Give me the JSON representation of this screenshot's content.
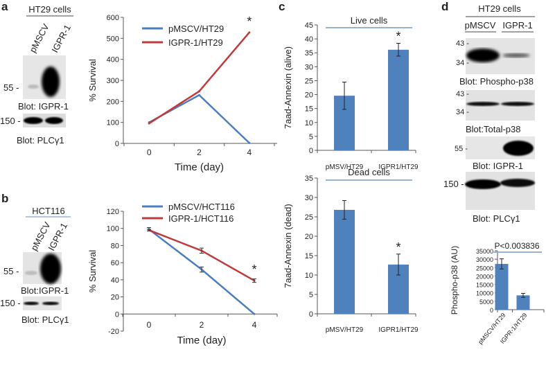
{
  "panels": {
    "a": {
      "letter": "a",
      "cell_line": "HT29 cells",
      "lanes": [
        "pMSCV",
        "IGPR-1"
      ],
      "blots": [
        {
          "marker": "55 -",
          "label": "Blot: IGPR-1"
        },
        {
          "marker": "150 -",
          "label": "Blot: PLCγ1"
        }
      ]
    },
    "b": {
      "letter": "b",
      "cell_line": "HCT116",
      "lanes": [
        "pMSCV",
        "IGPR-1"
      ],
      "blots": [
        {
          "marker": "55 -",
          "label": "Blot:IGPR-1"
        },
        {
          "marker": "150 -",
          "label": "Blot: PLCγ1"
        }
      ]
    },
    "c": {
      "letter": "c"
    },
    "d": {
      "letter": "d",
      "cell_line": "HT29 cells",
      "lanes": [
        "pMSCV",
        "IGPR-1"
      ],
      "blots": [
        {
          "markers": [
            "43 -",
            "34 -"
          ],
          "label": "Blot: Phospho-p38"
        },
        {
          "markers": [
            "43 -",
            "34 -"
          ],
          "label": "Blot:Total-p38"
        },
        {
          "markers": [
            "55 -"
          ],
          "label": "Blot: IGPR-1"
        },
        {
          "markers": [
            "150 -"
          ],
          "label": "Blot: PLCγ1"
        }
      ]
    }
  },
  "colors": {
    "blue": "#4a7ebf",
    "red": "#c0393b",
    "bar": "#4f81bd",
    "title_line": "#95b3d7"
  },
  "chart_data": [
    {
      "id": "a-survival",
      "type": "line",
      "title": "",
      "xlabel": "Time (day)",
      "ylabel": "% Survival",
      "x": [
        0,
        2,
        4
      ],
      "ylim": [
        0,
        600
      ],
      "yticks": [
        0,
        100,
        200,
        300,
        400,
        500,
        600
      ],
      "xticks": [
        0,
        2,
        4
      ],
      "legend": "top-left",
      "series": [
        {
          "name": "pMSCV/HT29",
          "color": "#4a7ebf",
          "values": [
            100,
            230,
            2
          ]
        },
        {
          "name": "IGPR-1/HT29",
          "color": "#c0393b",
          "values": [
            95,
            248,
            528
          ]
        }
      ],
      "annotations": [
        {
          "text": "*",
          "x": 4,
          "y": 528
        }
      ]
    },
    {
      "id": "b-survival",
      "type": "line",
      "xlabel": "Time (day)",
      "ylabel": "% Survival",
      "x": [
        0,
        2,
        4
      ],
      "ylim": [
        -20,
        120
      ],
      "yticks": [
        -20,
        0,
        20,
        40,
        60,
        80,
        100,
        120
      ],
      "xticks": [
        0,
        2,
        4
      ],
      "legend": "top-left",
      "series": [
        {
          "name": "pMSCV/HCT116",
          "color": "#4a7ebf",
          "values": [
            99,
            52,
            0
          ],
          "errors": [
            2,
            3,
            0
          ]
        },
        {
          "name": "IGPR-1/HCT116",
          "color": "#c0393b",
          "values": [
            98,
            74,
            39
          ],
          "errors": [
            1,
            3,
            2
          ]
        }
      ],
      "annotations": [
        {
          "text": "*",
          "x": 4,
          "y": 39
        }
      ]
    },
    {
      "id": "c-live",
      "type": "bar",
      "title": "Live cells",
      "ylabel": "7aad-Annexin (alive)",
      "categories": [
        "pMSV/HT29",
        "IGPR1/HT29"
      ],
      "values": [
        19.6,
        36.1
      ],
      "errors": [
        4.9,
        2.3
      ],
      "ylim": [
        0,
        45
      ],
      "yticks": [
        0,
        5,
        10,
        15,
        20,
        25,
        30,
        35,
        40,
        45
      ],
      "annotations": [
        {
          "text": "*",
          "category": 1
        }
      ]
    },
    {
      "id": "c-dead",
      "type": "bar",
      "title": "Dead cells",
      "ylabel": "7aad-Annexin (dead)",
      "categories": [
        "pMSV/HT29",
        "IGPR1/HT29"
      ],
      "values": [
        26.8,
        12.7
      ],
      "errors": [
        2.4,
        2.7
      ],
      "ylim": [
        0,
        35
      ],
      "yticks": [
        0,
        5,
        10,
        15,
        20,
        25,
        30,
        35
      ],
      "annotations": [
        {
          "text": "*",
          "category": 1
        }
      ]
    },
    {
      "id": "d-phospho",
      "type": "bar",
      "title": "P<0.003836",
      "ylabel": "Phospho-p38 (AU)",
      "categories": [
        "pMSCV/HT29",
        "IGPR-1/HT29"
      ],
      "values": [
        27200,
        8500
      ],
      "errors": [
        3000,
        1200
      ],
      "ylim": [
        0,
        35000
      ],
      "yticks": [
        0,
        5000,
        10000,
        15000,
        20000,
        25000,
        30000,
        35000
      ]
    }
  ]
}
